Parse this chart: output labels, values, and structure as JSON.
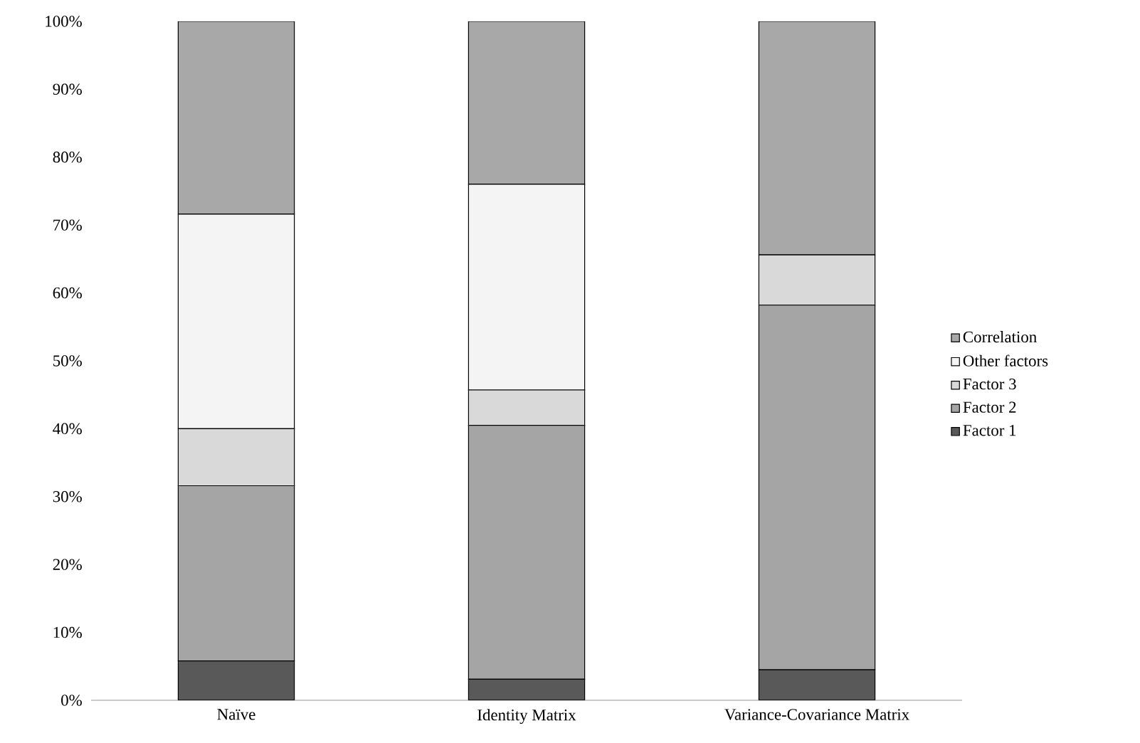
{
  "chart_data": {
    "type": "bar",
    "stacked": true,
    "categories": [
      "Naïve",
      "Identity Matrix",
      "Variance-Covariance Matrix"
    ],
    "series": [
      {
        "name": "Factor 1",
        "color": "#595959",
        "values": [
          5.8,
          3.1,
          4.5
        ]
      },
      {
        "name": "Factor 2",
        "color": "#a5a5a5",
        "values": [
          25.8,
          37.4,
          53.7
        ]
      },
      {
        "name": "Factor 3",
        "color": "#d9d9d9",
        "values": [
          8.4,
          5.2,
          7.4
        ]
      },
      {
        "name": "Other factors",
        "color": "#f4f4f4",
        "values": [
          31.6,
          30.3,
          0
        ]
      },
      {
        "name": "Correlation",
        "color": "#a8a8a8",
        "values": [
          28.4,
          24.0,
          34.4
        ]
      }
    ],
    "ylim": [
      0,
      100
    ],
    "yticks": [
      {
        "value": 0,
        "label": "0%"
      },
      {
        "value": 10,
        "label": "10%"
      },
      {
        "value": 20,
        "label": "20%"
      },
      {
        "value": 30,
        "label": "30%"
      },
      {
        "value": 40,
        "label": "40%"
      },
      {
        "value": 50,
        "label": "50%"
      },
      {
        "value": 60,
        "label": "60%"
      },
      {
        "value": 70,
        "label": "70%"
      },
      {
        "value": 80,
        "label": "80%"
      },
      {
        "value": 90,
        "label": "90%"
      },
      {
        "value": 100,
        "label": "100%"
      }
    ],
    "grid": false,
    "legend": "right"
  }
}
